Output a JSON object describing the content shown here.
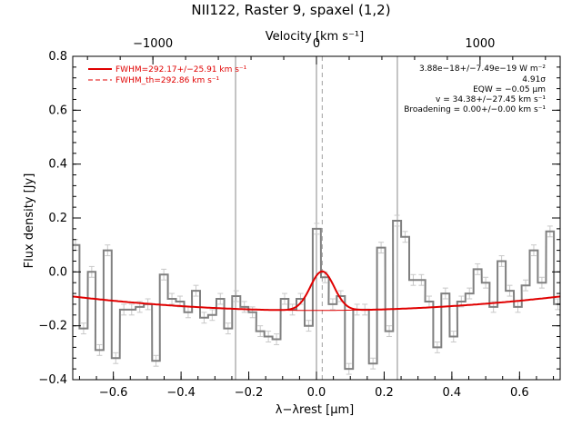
{
  "chart_data": {
    "type": "line",
    "title": "NII122, Raster 9, spaxel (1,2)",
    "xlabel": "λ−λrest [μm]",
    "ylabel": "Flux density [Jy]",
    "top_xlabel": "Velocity [km s⁻¹]",
    "xlim": [
      -0.72,
      0.72
    ],
    "ylim": [
      -0.4,
      0.8
    ],
    "top_xlim": [
      -1490,
      1490
    ],
    "x_ticks": [
      "−0.6",
      "−0.4",
      "−0.2",
      "0.0",
      "0.2",
      "0.4",
      "0.6"
    ],
    "x_tick_values": [
      -0.6,
      -0.4,
      -0.2,
      0.0,
      0.2,
      0.4,
      0.6
    ],
    "y_ticks": [
      "−0.4",
      "−0.2",
      "0.0",
      "0.2",
      "0.4",
      "0.6",
      "0.8"
    ],
    "y_tick_values": [
      -0.4,
      -0.2,
      0.0,
      0.2,
      0.4,
      0.6,
      0.8
    ],
    "top_ticks": [
      "−1000",
      "0",
      "1000"
    ],
    "top_tick_values": [
      -1000,
      0,
      1000
    ],
    "vlines": [
      -0.239,
      0.0,
      0.239
    ],
    "center_line": 0.017,
    "legend": {
      "position": "top-left",
      "fit_label": "FWHM=292.17+/−25.91 km s⁻¹",
      "th_label": "FWHM_th=292.86 km s⁻¹"
    },
    "annotations": [
      "3.88e−18+/−7.49e−19 W m⁻²",
      "4.91σ",
      "EQW = −0.05 μm",
      "v = 34.38+/−27.45 km s⁻¹",
      "Broadening = 0.00+/−0.00 km s⁻¹"
    ],
    "series": [
      {
        "name": "data",
        "style": "step",
        "x": [
          -0.712,
          -0.688,
          -0.664,
          -0.641,
          -0.617,
          -0.593,
          -0.569,
          -0.546,
          -0.522,
          -0.498,
          -0.474,
          -0.451,
          -0.427,
          -0.403,
          -0.379,
          -0.356,
          -0.332,
          -0.308,
          -0.284,
          -0.261,
          -0.237,
          -0.213,
          -0.189,
          -0.166,
          -0.142,
          -0.118,
          -0.094,
          -0.071,
          -0.047,
          -0.023,
          0.001,
          0.025,
          0.048,
          0.072,
          0.096,
          0.12,
          0.143,
          0.167,
          0.191,
          0.215,
          0.238,
          0.262,
          0.286,
          0.31,
          0.333,
          0.357,
          0.381,
          0.405,
          0.428,
          0.452,
          0.476,
          0.5,
          0.523,
          0.547,
          0.571,
          0.595,
          0.618,
          0.642,
          0.666,
          0.69,
          0.713
        ],
        "y": [
          0.1,
          -0.21,
          0.0,
          -0.29,
          0.08,
          -0.32,
          -0.14,
          -0.14,
          -0.13,
          -0.12,
          -0.33,
          -0.01,
          -0.1,
          -0.11,
          -0.15,
          -0.07,
          -0.17,
          -0.16,
          -0.1,
          -0.21,
          -0.09,
          -0.13,
          -0.15,
          -0.22,
          -0.24,
          -0.25,
          -0.1,
          -0.14,
          -0.1,
          -0.2,
          0.16,
          -0.02,
          -0.12,
          -0.09,
          -0.36,
          -0.14,
          -0.14,
          -0.34,
          0.09,
          -0.22,
          0.19,
          0.13,
          -0.03,
          -0.03,
          -0.11,
          -0.28,
          -0.08,
          -0.24,
          -0.11,
          -0.08,
          0.01,
          -0.04,
          -0.13,
          0.04,
          -0.07,
          -0.13,
          -0.05,
          0.08,
          -0.04,
          0.15,
          -0.12
        ],
        "yerr": 0.02,
        "color": "#808080"
      },
      {
        "name": "FWHM=292.17+/−25.91 km s⁻¹",
        "style": "fit",
        "baseline": {
          "a": -0.143,
          "b": 0.0,
          "c": 0.1
        },
        "gauss": {
          "center": 0.017,
          "amp": 0.145,
          "sigma": 0.035
        },
        "color": "#e00000"
      }
    ]
  }
}
